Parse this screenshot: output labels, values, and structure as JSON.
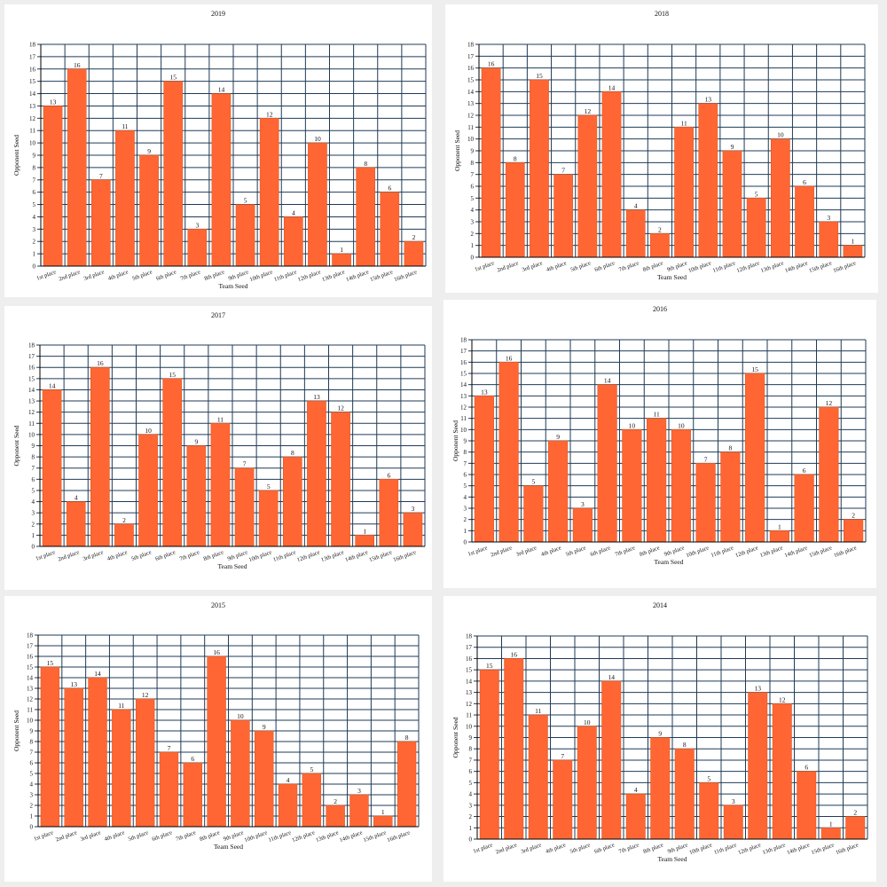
{
  "chart_data": [
    {
      "type": "bar",
      "title": "2019",
      "xlabel": "Team Seed",
      "ylabel": "Opponent Seed",
      "categories": [
        "1st place",
        "2nd place",
        "3rd place",
        "4th place",
        "5th place",
        "6th place",
        "7th place",
        "8th place",
        "9th place",
        "10th place",
        "11th place",
        "12th place",
        "13th place",
        "14th place",
        "15th place",
        "16th place"
      ],
      "values": [
        13,
        16,
        7,
        11,
        9,
        15,
        3,
        14,
        5,
        12,
        4,
        10,
        1,
        8,
        6,
        2
      ],
      "ylim": [
        0,
        18
      ],
      "yticks": [
        0,
        1,
        2,
        3,
        4,
        5,
        6,
        7,
        8,
        9,
        10,
        11,
        12,
        13,
        14,
        15,
        16,
        17,
        18
      ],
      "grid": true,
      "color": "#ff6633"
    },
    {
      "type": "bar",
      "title": "2018",
      "xlabel": "Team Seed",
      "ylabel": "Opponent Seed",
      "categories": [
        "1st place",
        "2nd place",
        "3rd place",
        "4th place",
        "5th place",
        "6th place",
        "7th place",
        "8th place",
        "9th place",
        "10th place",
        "11th place",
        "12th place",
        "13th place",
        "14th place",
        "15th place",
        "16th place"
      ],
      "values": [
        16,
        8,
        15,
        7,
        12,
        14,
        4,
        2,
        11,
        13,
        9,
        5,
        10,
        6,
        3,
        1
      ],
      "ylim": [
        0,
        18
      ],
      "yticks": [
        0,
        1,
        2,
        3,
        4,
        5,
        6,
        7,
        8,
        9,
        10,
        11,
        12,
        13,
        14,
        15,
        16,
        17,
        18
      ],
      "grid": true,
      "color": "#ff6633"
    },
    {
      "type": "bar",
      "title": "2017",
      "xlabel": "Team Seed",
      "ylabel": "Opponent Seed",
      "categories": [
        "1st place",
        "2nd place",
        "3rd place",
        "4th place",
        "5th place",
        "6th place",
        "7th place",
        "8th place",
        "9th place",
        "10th place",
        "11th place",
        "12th place",
        "13th place",
        "14th place",
        "15th place",
        "16th place"
      ],
      "values": [
        14,
        4,
        16,
        2,
        10,
        15,
        9,
        11,
        7,
        5,
        8,
        13,
        12,
        1,
        6,
        3
      ],
      "ylim": [
        0,
        18
      ],
      "yticks": [
        0,
        1,
        2,
        3,
        4,
        5,
        6,
        7,
        8,
        9,
        10,
        11,
        12,
        13,
        14,
        15,
        16,
        17,
        18
      ],
      "grid": true,
      "color": "#ff6633"
    },
    {
      "type": "bar",
      "title": "2016",
      "xlabel": "Team Seed",
      "ylabel": "Opponent Seed",
      "categories": [
        "1st place",
        "2nd place",
        "3rd place",
        "4th place",
        "5th place",
        "6th place",
        "7th place",
        "8th place",
        "9th place",
        "10th place",
        "11th place",
        "12th place",
        "13th place",
        "14th place",
        "15th place",
        "16th place"
      ],
      "values": [
        13,
        16,
        5,
        9,
        3,
        14,
        10,
        11,
        10,
        7,
        8,
        15,
        1,
        6,
        12,
        2
      ],
      "ylim": [
        0,
        18
      ],
      "yticks": [
        0,
        1,
        2,
        3,
        4,
        5,
        6,
        7,
        8,
        9,
        10,
        11,
        12,
        13,
        14,
        15,
        16,
        17,
        18
      ],
      "grid": true,
      "color": "#ff6633"
    },
    {
      "type": "bar",
      "title": "2015",
      "xlabel": "Team Seed",
      "ylabel": "Opponent Seed",
      "categories": [
        "1st place",
        "2nd place",
        "3rd place",
        "4th place",
        "5th place",
        "6th place",
        "7th place",
        "8th place",
        "9th place",
        "10th place",
        "11th place",
        "12th place",
        "13th place",
        "14th place",
        "15th place",
        "16th place"
      ],
      "values": [
        15,
        13,
        14,
        11,
        12,
        7,
        6,
        16,
        10,
        9,
        4,
        5,
        2,
        3,
        1,
        8
      ],
      "ylim": [
        0,
        18
      ],
      "yticks": [
        0,
        1,
        2,
        3,
        4,
        5,
        6,
        7,
        8,
        9,
        10,
        11,
        12,
        13,
        14,
        15,
        16,
        17,
        18
      ],
      "grid": true,
      "color": "#ff6633"
    },
    {
      "type": "bar",
      "title": "2014",
      "xlabel": "Team Seed",
      "ylabel": "Opponent Seed",
      "categories": [
        "1st place",
        "2nd place",
        "3rd place",
        "4th place",
        "5th place",
        "6th place",
        "7th place",
        "8th place",
        "9th place",
        "10th place",
        "11th place",
        "12th place",
        "13th place",
        "14th place",
        "15th place",
        "16th place"
      ],
      "values": [
        15,
        16,
        11,
        7,
        10,
        14,
        4,
        9,
        8,
        5,
        3,
        13,
        12,
        6,
        1,
        2
      ],
      "ylim": [
        0,
        18
      ],
      "yticks": [
        0,
        1,
        2,
        3,
        4,
        5,
        6,
        7,
        8,
        9,
        10,
        11,
        12,
        13,
        14,
        15,
        16,
        17,
        18
      ],
      "grid": true,
      "color": "#ff6633"
    }
  ]
}
